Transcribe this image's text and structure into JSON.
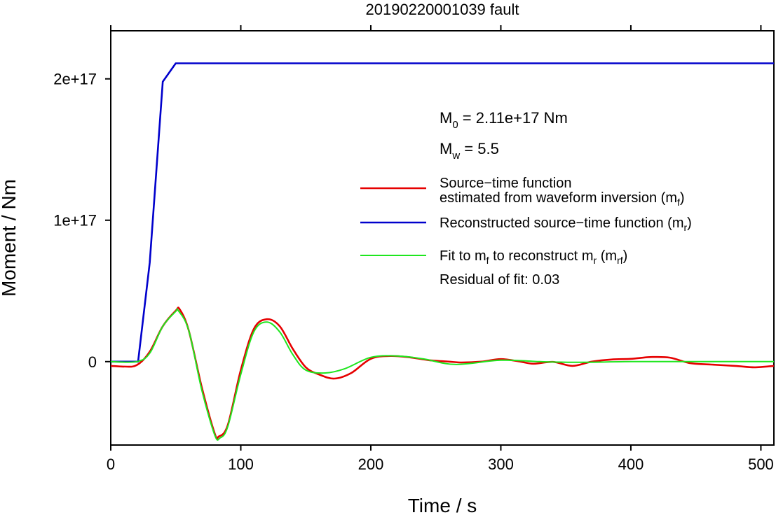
{
  "chart_data": {
    "type": "line",
    "title": "20190220001039 fault",
    "xlabel": "Time / s",
    "ylabel": "Moment / Nm",
    "xlim": [
      0,
      510
    ],
    "ylim": [
      -5.9e+16,
      2.34e+17
    ],
    "grid": false,
    "legend_position": "right",
    "x_ticks": [
      0,
      100,
      200,
      300,
      400,
      500
    ],
    "x_tick_labels": [
      "0",
      "100",
      "200",
      "300",
      "400",
      "500"
    ],
    "y_ticks": [
      0,
      1e+17,
      2e+17
    ],
    "y_tick_labels": [
      "0",
      "1e+17",
      "2e+17"
    ],
    "annotations": {
      "m0": {
        "base": "M",
        "sub": "0",
        "rest": " = 2.11e+17 Nm"
      },
      "mw": {
        "base": "M",
        "sub": "w",
        "rest": " = 5.5"
      },
      "residual": "Residual of fit: 0.03"
    },
    "legend": {
      "red": {
        "line1": "Source−time function",
        "line2_pre": "estimated from waveform inversion (m",
        "line2_sub": "f",
        "line2_post": ")"
      },
      "blue": {
        "pre": "Reconstructed source−time function (m",
        "sub": "r",
        "post": ")"
      },
      "green": {
        "pre1": "Fit to m",
        "sub1": "f",
        "mid": " to reconstruct m",
        "sub2": "r",
        "mid2": " (m",
        "sub3": "rf",
        "post": ")"
      }
    },
    "series": [
      {
        "key": "mf",
        "color": "#e60000",
        "x": [
          0,
          10,
          20,
          30,
          40,
          50,
          53,
          60,
          70,
          80,
          83,
          90,
          100,
          110,
          120,
          130,
          140,
          150,
          160,
          172,
          185,
          200,
          215,
          230,
          245,
          260,
          270,
          285,
          300,
          315,
          325,
          340,
          355,
          370,
          385,
          400,
          415,
          430,
          445,
          460,
          480,
          495,
          510
        ],
        "y": [
          -3000000000000000.0,
          -3500000000000000.0,
          -2500000000000000.0,
          7000000000000000.0,
          2.5e+16,
          3.6e+16,
          3.7e+16,
          2.2e+16,
          -1.8e+16,
          -5.1e+16,
          -5.3e+16,
          -4.5e+16,
          -6000000000000000.0,
          2.3e+16,
          3e+16,
          2.5e+16,
          9000000000000000.0,
          -4000000000000000.0,
          -9000000000000000.0,
          -1.2e+16,
          -8000000000000000.0,
          2000000000000000.0,
          4000000000000000.0,
          3000000000000000.0,
          1000000000000000.0,
          0,
          -600000000000000.0,
          0,
          1800000000000000.0,
          0,
          -1500000000000000.0,
          -200000000000000.0,
          -3000000000000000.0,
          0,
          1500000000000000.0,
          2000000000000000.0,
          3200000000000000.0,
          2800000000000000.0,
          -1000000000000000.0,
          -2000000000000000.0,
          -3000000000000000.0,
          -4000000000000000.0,
          -3000000000000000.0
        ]
      },
      {
        "key": "mr",
        "color": "#0000cc",
        "x": [
          0,
          21,
          30,
          40,
          50,
          510
        ],
        "y": [
          0,
          0,
          7e+16,
          1.98e+17,
          2.11e+17,
          2.11e+17
        ]
      },
      {
        "key": "mrf",
        "color": "#1ee61e",
        "x": [
          0,
          20,
          30,
          40,
          50,
          52,
          60,
          70,
          80,
          84,
          90,
          100,
          110,
          120,
          130,
          140,
          150,
          165,
          180,
          200,
          220,
          240,
          265,
          300,
          330,
          360,
          400,
          450,
          510
        ],
        "y": [
          0,
          0,
          6000000000000000.0,
          2.5e+16,
          3.55e+16,
          3.6e+16,
          2.2e+16,
          -2e+16,
          -5.2e+16,
          -5.4e+16,
          -4.6e+16,
          -9000000000000000.0,
          2.1e+16,
          2.8e+16,
          2.1e+16,
          5000000000000000.0,
          -6000000000000000.0,
          -8000000000000000.0,
          -5000000000000000.0,
          3000000000000000.0,
          4000000000000000.0,
          2000000000000000.0,
          -2000000000000000.0,
          1000000000000000.0,
          0,
          -500000000000000.0,
          0,
          0,
          0
        ]
      }
    ]
  }
}
